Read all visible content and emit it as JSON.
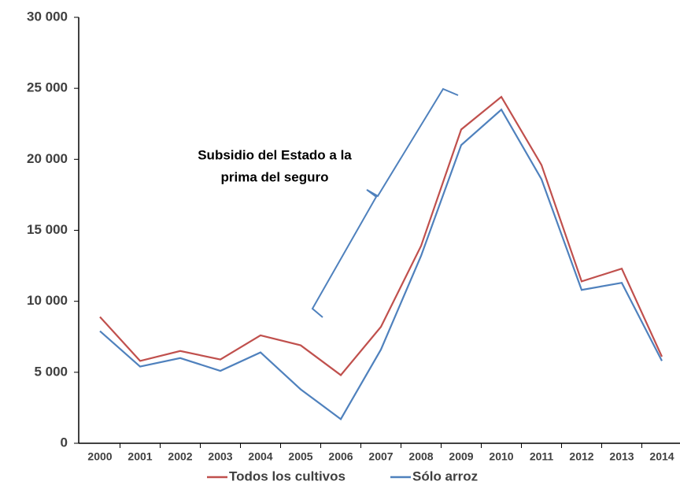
{
  "chart_data": {
    "type": "line",
    "categories": [
      "2000",
      "2001",
      "2002",
      "2003",
      "2004",
      "2005",
      "2006",
      "2007",
      "2008",
      "2009",
      "2010",
      "2011",
      "2012",
      "2013",
      "2014"
    ],
    "series": [
      {
        "name": "Todos los cultivos",
        "color": "#c0504d",
        "values": [
          8900,
          5800,
          6500,
          5900,
          7600,
          6900,
          4800,
          8200,
          13900,
          22100,
          24400,
          19600,
          11400,
          12300,
          6100
        ]
      },
      {
        "name": "Sólo arroz",
        "color": "#4f81bd",
        "values": [
          7900,
          5400,
          6000,
          5100,
          6400,
          3800,
          1700,
          6600,
          13200,
          21000,
          23500,
          18600,
          10800,
          11300,
          5800
        ]
      }
    ],
    "ylim": [
      0,
      30000
    ],
    "yticks": [
      0,
      {
        "value": 5000,
        "label": "5 000"
      },
      {
        "value": 10000,
        "label": "10 000"
      },
      {
        "value": 15000,
        "label": "15 000"
      },
      {
        "value": 20000,
        "label": "20 000"
      },
      {
        "value": 25000,
        "label": "25 000"
      },
      {
        "value": 30000,
        "label": "30 000"
      }
    ],
    "annotation": [
      "Subsidio del Estado a la",
      "prima del seguro"
    ],
    "legend": "bottom"
  }
}
